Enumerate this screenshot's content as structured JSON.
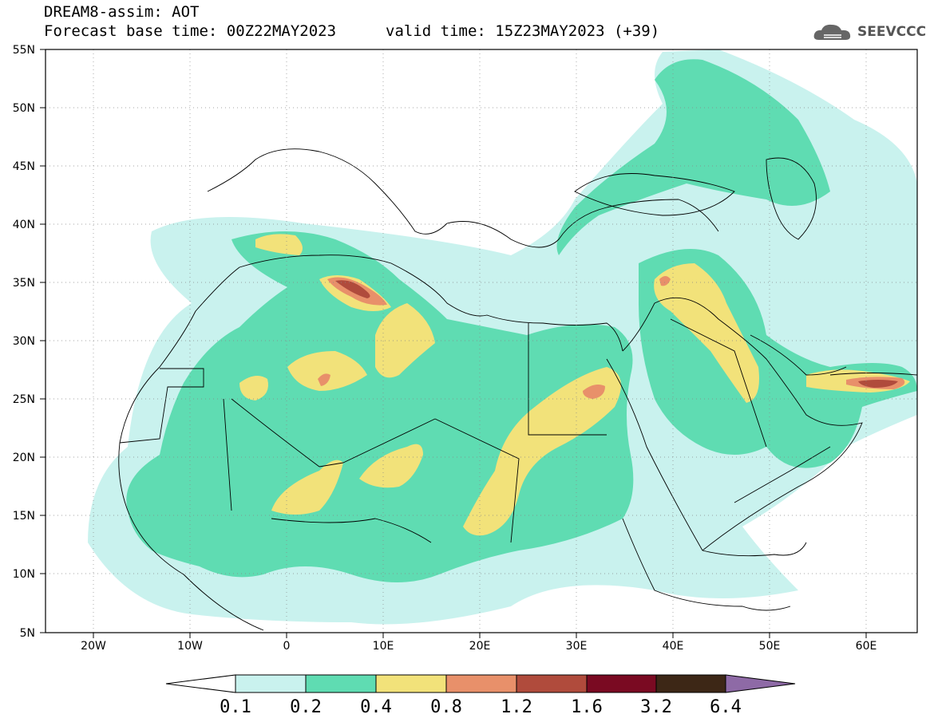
{
  "header": {
    "model_line": "DREAM8-assim: AOT",
    "base_time_line": "Forecast base time: 00Z22MAY2023",
    "valid_time_line": "valid time: 15Z23MAY2023 (+39)",
    "logo_text": "SEEVCCC"
  },
  "axes": {
    "lat_labels": [
      "55N",
      "50N",
      "45N",
      "40N",
      "35N",
      "30N",
      "25N",
      "20N",
      "15N",
      "10N",
      "5N"
    ],
    "lon_labels": [
      "20W",
      "10W",
      "0",
      "10E",
      "20E",
      "30E",
      "40E",
      "50E",
      "60E"
    ]
  },
  "colorbar": {
    "labels": [
      "0.1",
      "0.2",
      "0.4",
      "0.8",
      "1.2",
      "1.6",
      "3.2",
      "6.4"
    ],
    "colors": [
      "#ffffff",
      "#c9f2ee",
      "#5fdcb2",
      "#f2e27a",
      "#e8906a",
      "#b04b3c",
      "#7a0a22",
      "#3d2716",
      "#8e6aa6"
    ]
  },
  "map": {
    "lat_range": [
      5,
      55
    ],
    "lon_range": [
      -25,
      65
    ],
    "field_colors": {
      "light": "#c9f2ee",
      "green": "#5fdcb2",
      "yellow": "#f2e27a",
      "orange": "#e8906a",
      "red": "#b04b3c"
    }
  }
}
